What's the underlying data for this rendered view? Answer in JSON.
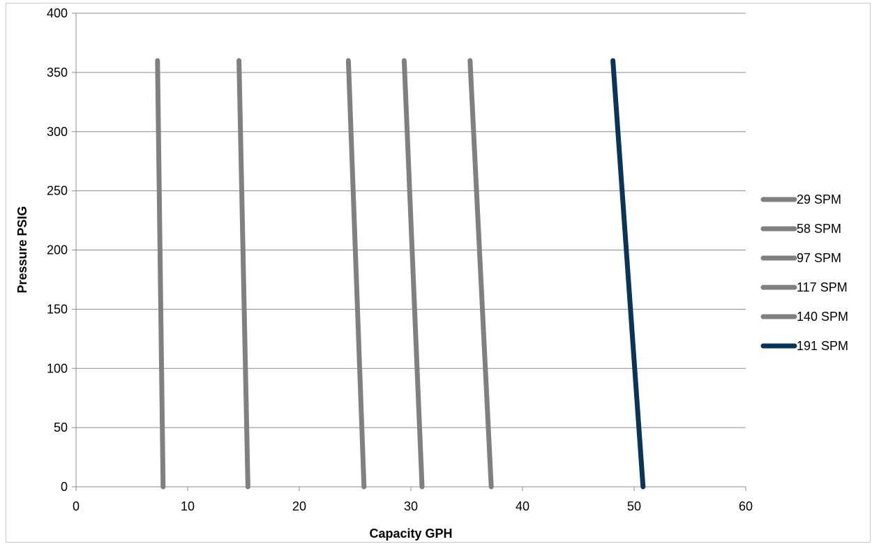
{
  "chart_data": {
    "type": "line",
    "title": "",
    "xlabel": "Capacity GPH",
    "ylabel": "Pressure PSIG",
    "xlim": [
      0,
      60
    ],
    "ylim": [
      0,
      400
    ],
    "x_ticks": [
      0,
      10,
      20,
      30,
      40,
      50,
      60
    ],
    "y_ticks": [
      0,
      50,
      100,
      150,
      200,
      250,
      300,
      350,
      400
    ],
    "grid": "horizontal",
    "legend_position": "right",
    "series": [
      {
        "name": "29 SPM",
        "color": "#808080",
        "points": [
          [
            7.3,
            360
          ],
          [
            7.8,
            0
          ]
        ]
      },
      {
        "name": "58 SPM",
        "color": "#808080",
        "points": [
          [
            14.6,
            360
          ],
          [
            15.4,
            0
          ]
        ]
      },
      {
        "name": "97 SPM",
        "color": "#808080",
        "points": [
          [
            24.4,
            360
          ],
          [
            25.8,
            0
          ]
        ]
      },
      {
        "name": "117 SPM",
        "color": "#808080",
        "points": [
          [
            29.4,
            360
          ],
          [
            31.0,
            0
          ]
        ]
      },
      {
        "name": "140 SPM",
        "color": "#808080",
        "points": [
          [
            35.3,
            360
          ],
          [
            37.2,
            0
          ]
        ]
      },
      {
        "name": "191 SPM",
        "color": "#0b3558",
        "points": [
          [
            48.1,
            360
          ],
          [
            50.8,
            0
          ]
        ]
      }
    ]
  }
}
